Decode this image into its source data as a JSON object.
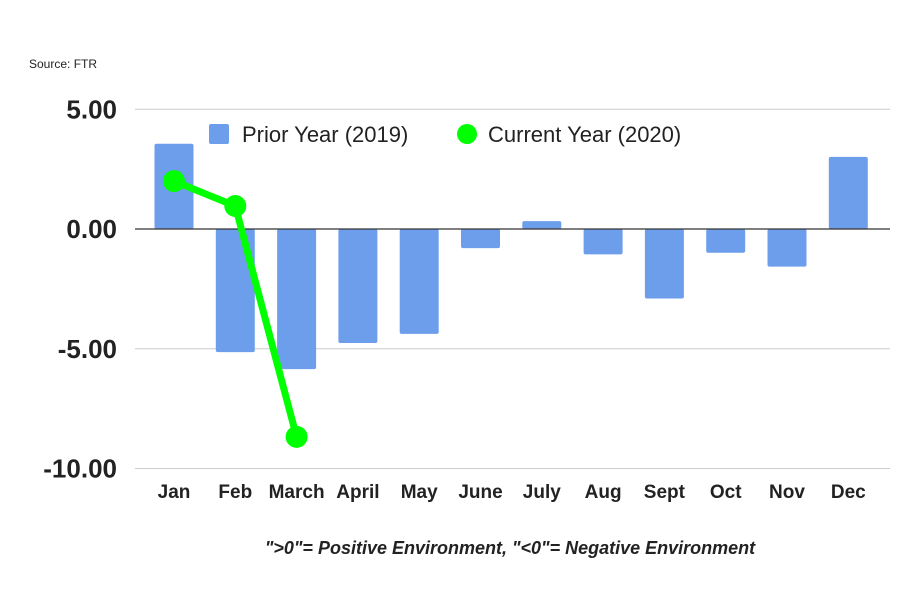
{
  "source": "Source: FTR",
  "note": "\">0\"= Positive Environment, \"<0\"= Negative Environment",
  "chart_data": {
    "type": "bar",
    "categories": [
      "Jan",
      "Feb",
      "March",
      "April",
      "May",
      "June",
      "July",
      "Aug",
      "Sept",
      "Oct",
      "Nov",
      "Dec"
    ],
    "series": [
      {
        "name": "Prior Year (2019)",
        "type": "bar",
        "color": "#6d9eeb",
        "values": [
          3.56,
          -5.14,
          -5.85,
          -4.76,
          -4.38,
          -0.8,
          0.33,
          -1.06,
          -2.9,
          -0.99,
          -1.57,
          3.01
        ]
      },
      {
        "name": "Current Year (2020)",
        "type": "line",
        "color": "#00ff00",
        "values": [
          2.0,
          0.96,
          -8.68,
          null,
          null,
          null,
          null,
          null,
          null,
          null,
          null,
          null
        ]
      }
    ],
    "ylim": [
      -10,
      5
    ],
    "yticks": [
      5,
      0,
      -5,
      -10
    ],
    "ytick_labels": [
      "5.00",
      "0.00",
      "-5.00",
      "-10.00"
    ],
    "grid": true,
    "legend": "top",
    "title": "",
    "xlabel": "",
    "ylabel": ""
  }
}
